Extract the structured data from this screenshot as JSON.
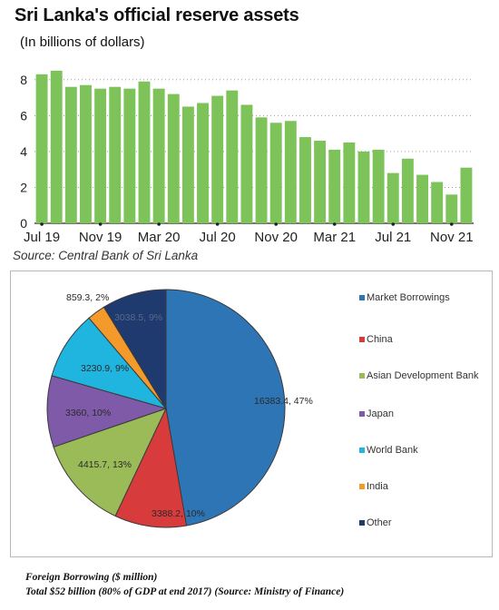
{
  "header": {
    "title": "Sri Lanka's official reserve assets",
    "subtitle": "(In billions of dollars)",
    "source": "Source: Central Bank of Sri Lanka"
  },
  "footer": {
    "line1": "Foreign Borrowing ($ million)",
    "line2": "Total $52 billion (80% of GDP at end 2017)   (Source: Ministry of Finance)"
  },
  "chart_data": [
    {
      "type": "bar",
      "title": "Sri Lanka's official reserve assets",
      "subtitle": "(In billions of dollars)",
      "categories": [
        "Jul 19",
        "Aug 19",
        "Sep 19",
        "Oct 19",
        "Nov 19",
        "Dec 19",
        "Jan 20",
        "Feb 20",
        "Mar 20",
        "Apr 20",
        "May 20",
        "Jun 20",
        "Jul 20",
        "Aug 20",
        "Sep 20",
        "Oct 20",
        "Nov 20",
        "Dec 20",
        "Jan 21",
        "Feb 21",
        "Mar 21",
        "Apr 21",
        "May 21",
        "Jun 21",
        "Jul 21",
        "Aug 21",
        "Sep 21",
        "Oct 21",
        "Nov 21",
        "Dec 21"
      ],
      "tick_labels": [
        "Jul 19",
        "Nov 19",
        "Mar 20",
        "Jul 20",
        "Nov 20",
        "Mar 21",
        "Jul 21",
        "Nov 21"
      ],
      "values": [
        8.3,
        8.5,
        7.6,
        7.7,
        7.5,
        7.6,
        7.5,
        7.9,
        7.5,
        7.2,
        6.5,
        6.7,
        7.1,
        7.4,
        6.6,
        5.9,
        5.6,
        5.7,
        4.8,
        4.6,
        4.1,
        4.5,
        4.0,
        4.1,
        2.8,
        3.6,
        2.7,
        2.3,
        1.6,
        3.1
      ],
      "yticks": [
        0,
        2,
        4,
        6,
        8
      ],
      "ylim": [
        0,
        9
      ],
      "grid": true,
      "color": "#7dc35a",
      "source": "Source: Central Bank of Sri Lanka"
    },
    {
      "type": "pie",
      "title": "Foreign Borrowing ($ million)",
      "slices": [
        {
          "name": "Market Borrowings",
          "value": 16383.4,
          "percent": 47,
          "label": "16383.4, 47%",
          "color": "#2e75b6"
        },
        {
          "name": "China",
          "value": 3388.2,
          "percent": 10,
          "label": "3388.2, 10%",
          "color": "#d83b3b"
        },
        {
          "name": "Asian Development Bank",
          "value": 4415.7,
          "percent": 13,
          "label": "4415.7, 13%",
          "color": "#9bbb59"
        },
        {
          "name": "Japan",
          "value": 3360,
          "percent": 10,
          "label": "3360, 10%",
          "color": "#7e5aa8"
        },
        {
          "name": "World Bank",
          "value": 3230.9,
          "percent": 9,
          "label": "3230.9, 9%",
          "color": "#1fb5de"
        },
        {
          "name": "India",
          "value": 859.3,
          "percent": 2,
          "label": "859.3, 2%",
          "color": "#f39a2a"
        },
        {
          "name": "Other",
          "value": 3038.5,
          "percent": 9,
          "label": "3038.5, 9%",
          "color": "#1f3a6e"
        }
      ],
      "legend_position": "right"
    }
  ]
}
